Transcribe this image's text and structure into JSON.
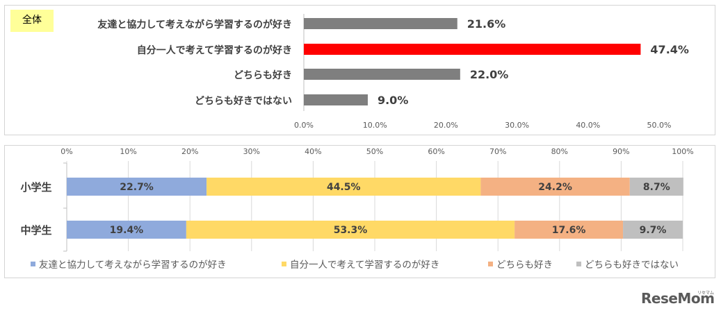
{
  "chart_data": [
    {
      "type": "bar",
      "orientation": "horizontal",
      "tag": "全体",
      "categories": [
        "友達と協力して考えながら学習するのが好き",
        "自分一人で考えて学習するのが好き",
        "どちらも好き",
        "どちらも好きではない"
      ],
      "values": [
        21.6,
        47.4,
        22.0,
        9.0
      ],
      "value_labels": [
        "21.6%",
        "47.4%",
        "22.0%",
        "9.0%"
      ],
      "bar_colors": [
        "#7f7f7f",
        "#ff0000",
        "#7f7f7f",
        "#7f7f7f"
      ],
      "xlim": [
        0,
        50
      ],
      "ticks": [
        "0.0%",
        "10.0%",
        "20.0%",
        "30.0%",
        "40.0%",
        "50.0%"
      ]
    },
    {
      "type": "bar",
      "orientation": "horizontal",
      "stacked": "100%",
      "categories": [
        "小学生",
        "中学生"
      ],
      "series": [
        {
          "name": "友達と協力して考えながら学習するのが好き",
          "color": "#8faadc",
          "values": [
            22.7,
            19.4
          ],
          "labels": [
            "22.7%",
            "19.4%"
          ]
        },
        {
          "name": "自分一人で考えて学習するのが好き",
          "color": "#ffd966",
          "values": [
            44.5,
            53.3
          ],
          "labels": [
            "44.5%",
            "53.3%"
          ]
        },
        {
          "name": "どちらも好き",
          "color": "#f4b183",
          "values": [
            24.2,
            17.6
          ],
          "labels": [
            "24.2%",
            "17.6%"
          ]
        },
        {
          "name": "どちらも好きではない",
          "color": "#bfbfbf",
          "values": [
            8.7,
            9.7
          ],
          "labels": [
            "8.7%",
            "9.7%"
          ]
        }
      ],
      "xlim": [
        0,
        100
      ],
      "ticks": [
        "0%",
        "10%",
        "20%",
        "30%",
        "40%",
        "50%",
        "60%",
        "70%",
        "80%",
        "90%",
        "100%"
      ],
      "legend_position": "bottom"
    }
  ],
  "branding": {
    "logo_text": "ReseMom",
    "logo_sub": "リセマム"
  }
}
